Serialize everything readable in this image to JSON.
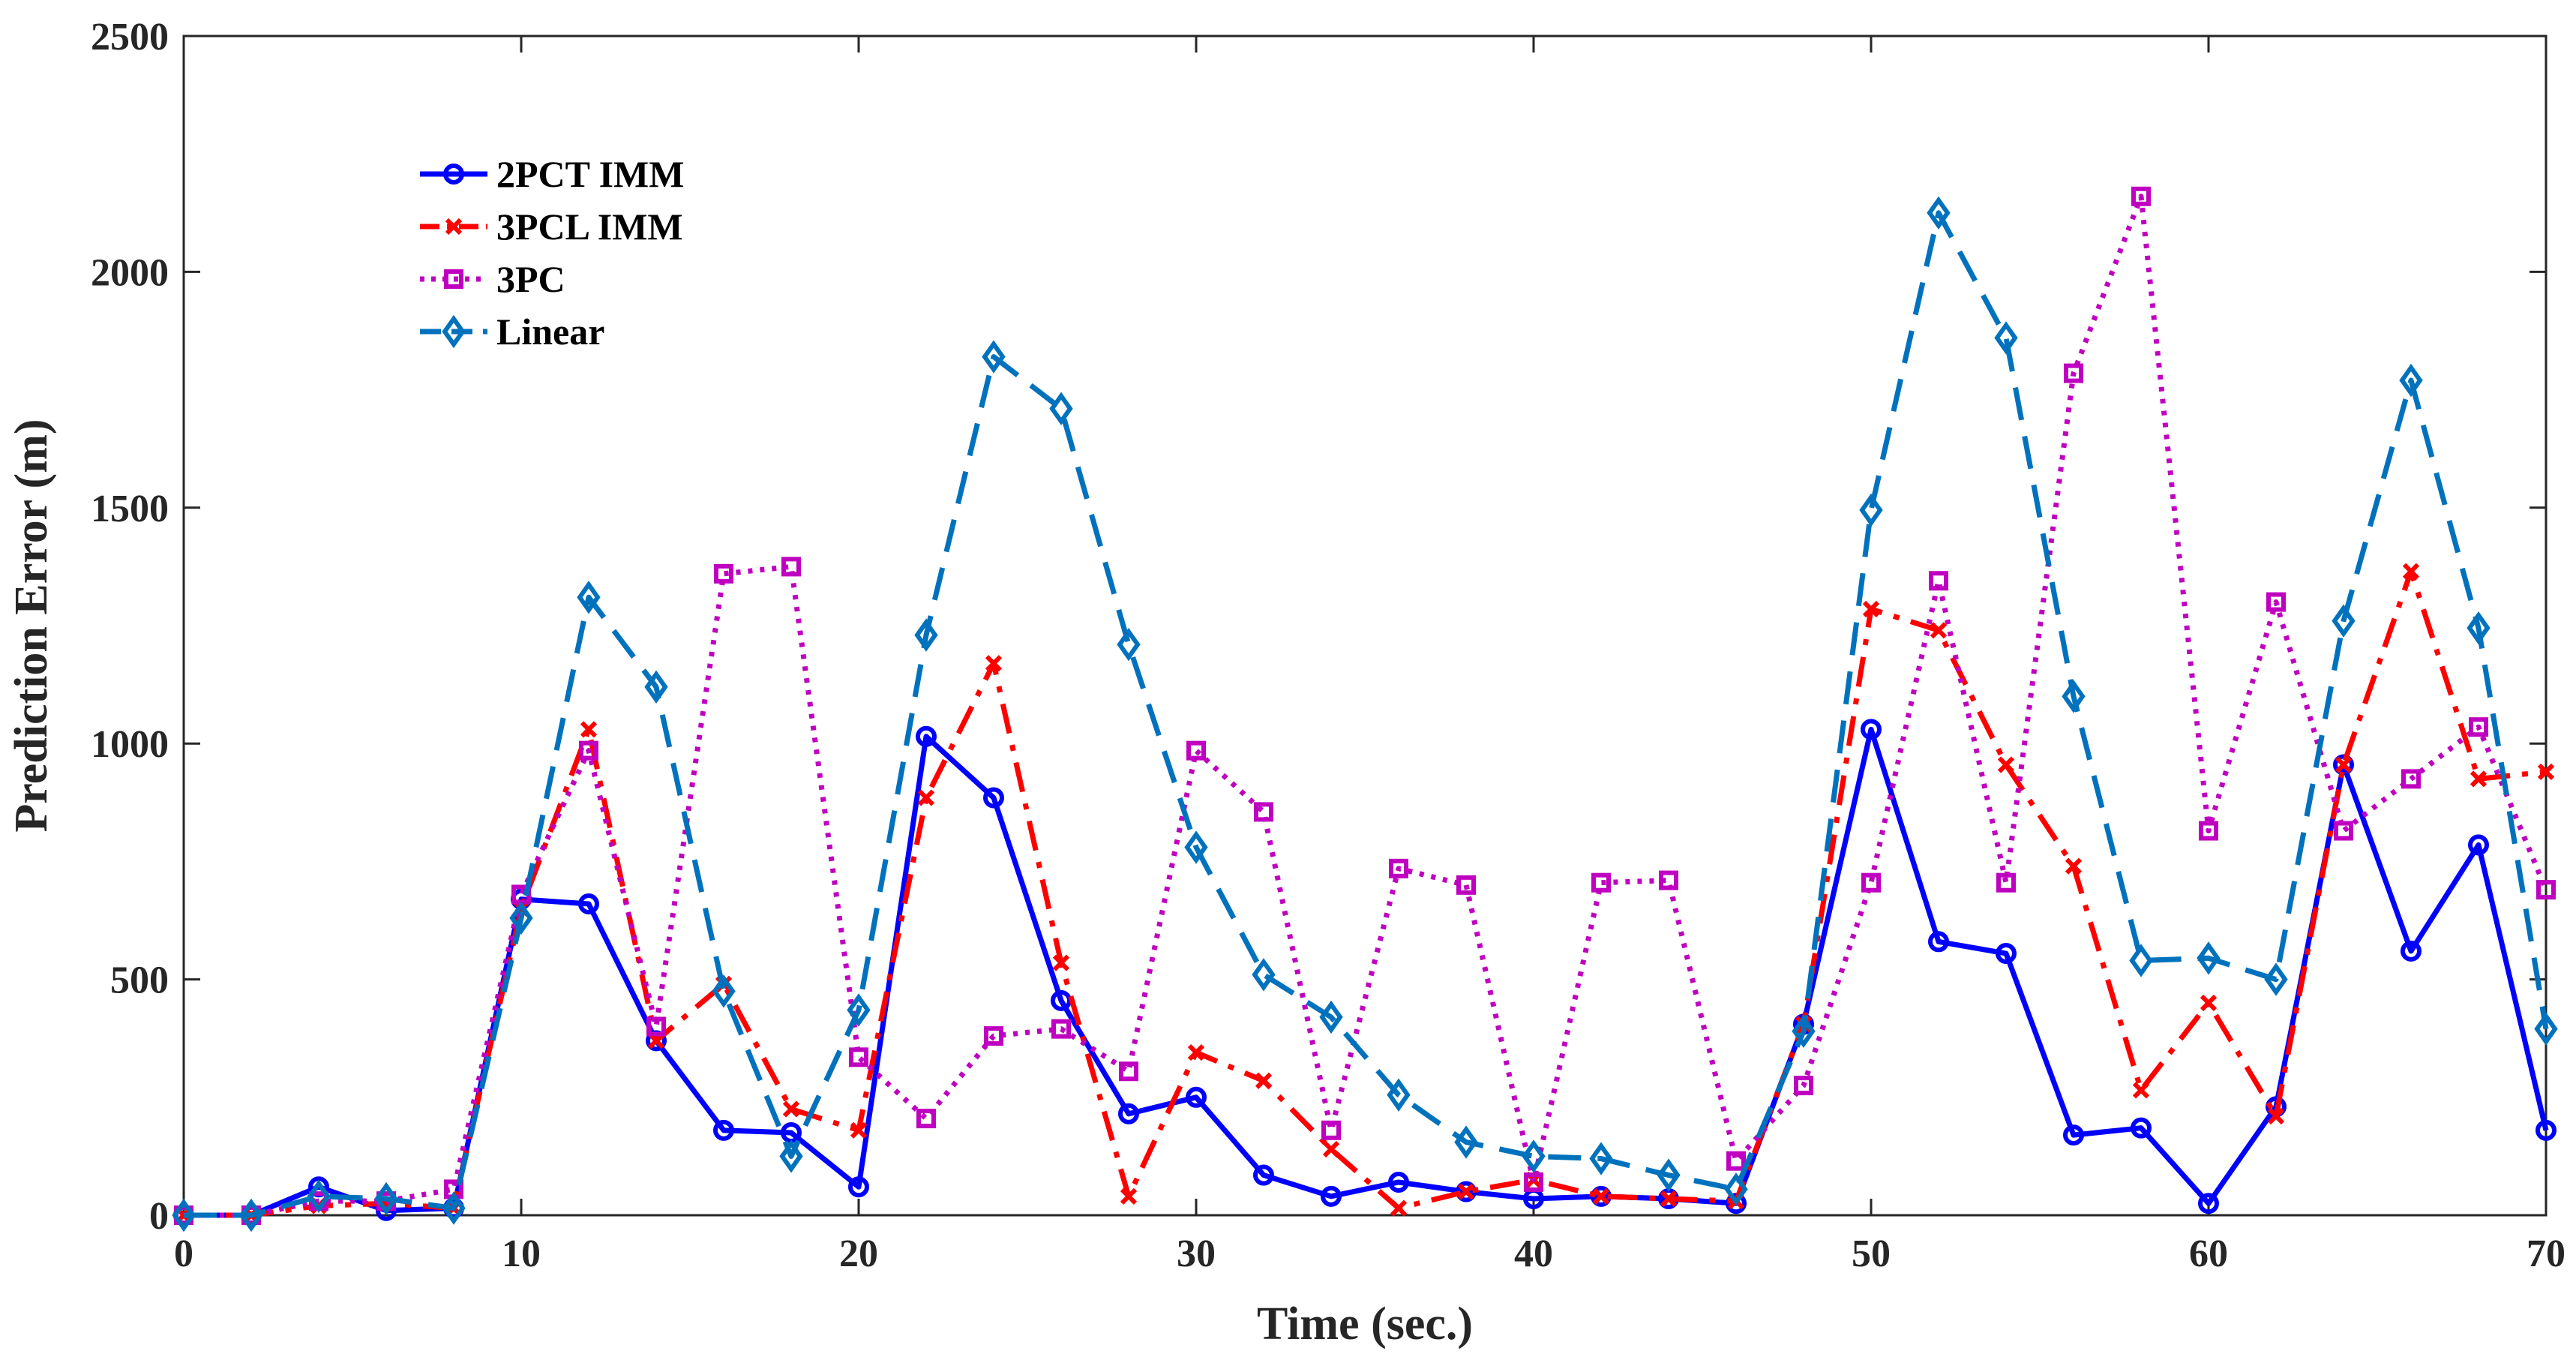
{
  "chart_data": {
    "type": "line",
    "title": "",
    "xlabel": "Time (sec.)",
    "ylabel": "Prediction Error (m)",
    "xlim": [
      0,
      70
    ],
    "ylim": [
      0,
      2500
    ],
    "xticks": [
      0,
      10,
      20,
      30,
      40,
      50,
      60,
      70
    ],
    "yticks": [
      0,
      500,
      1000,
      1500,
      2000,
      2500
    ],
    "xtick_labels": [
      "0",
      "10",
      "20",
      "30",
      "40",
      "50",
      "60",
      "70"
    ],
    "ytick_labels": [
      "0",
      "500",
      "1000",
      "1500",
      "2000",
      "2500"
    ],
    "grid": false,
    "legend_position": "upper-left",
    "x": [
      0,
      2,
      4,
      6,
      8,
      10,
      12,
      14,
      16,
      18,
      20,
      22,
      24,
      26,
      28,
      30,
      32,
      34,
      36,
      38,
      40,
      42,
      44,
      46,
      48,
      50,
      52,
      54,
      56,
      58,
      60,
      62,
      64,
      66,
      68,
      70
    ],
    "series": [
      {
        "name": "2PCT IMM",
        "color": "#0000ff",
        "line_style": "solid",
        "marker": "circle",
        "values": [
          0,
          0,
          60,
          10,
          15,
          670,
          660,
          370,
          180,
          175,
          60,
          1015,
          885,
          455,
          215,
          250,
          85,
          40,
          70,
          50,
          35,
          40,
          35,
          25,
          405,
          1030,
          580,
          555,
          170,
          185,
          25,
          230,
          955,
          560,
          785,
          180
        ]
      },
      {
        "name": "3PCL IMM",
        "color": "#ff0000",
        "line_style": "dashdot",
        "marker": "x",
        "values": [
          0,
          0,
          20,
          25,
          15,
          650,
          1030,
          370,
          490,
          225,
          180,
          885,
          1170,
          535,
          40,
          345,
          285,
          140,
          15,
          50,
          75,
          40,
          35,
          30,
          405,
          1285,
          1240,
          955,
          740,
          265,
          450,
          210,
          955,
          1365,
          925,
          940
        ]
      },
      {
        "name": "3PC",
        "color": "#c000c0",
        "line_style": "dotted",
        "marker": "square",
        "values": [
          0,
          0,
          30,
          30,
          55,
          680,
          985,
          400,
          1360,
          1375,
          335,
          205,
          380,
          395,
          305,
          985,
          855,
          180,
          735,
          700,
          70,
          705,
          710,
          115,
          275,
          705,
          1345,
          705,
          1785,
          2160,
          815,
          1300,
          815,
          925,
          1035,
          690
        ]
      },
      {
        "name": "Linear",
        "color": "#0072bd",
        "line_style": "dashed",
        "marker": "diamond",
        "values": [
          0,
          0,
          40,
          35,
          15,
          630,
          1310,
          1120,
          475,
          125,
          435,
          1230,
          1820,
          1710,
          1210,
          780,
          510,
          420,
          255,
          155,
          125,
          120,
          85,
          55,
          390,
          1495,
          2125,
          1860,
          1100,
          540,
          545,
          500,
          1260,
          1770,
          1245,
          395
        ]
      }
    ]
  }
}
